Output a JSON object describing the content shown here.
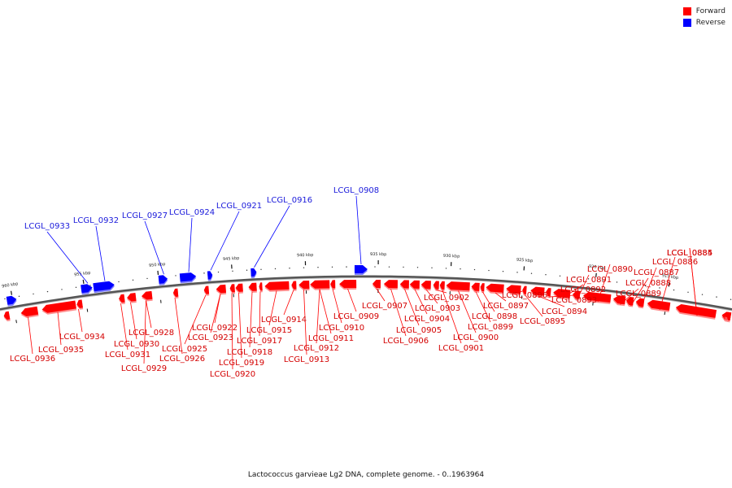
{
  "title": "Lactococcus garvieae Lg2 DNA, complete genome. - 0..1963964",
  "legend": {
    "forward_label": "Forward",
    "reverse_label": "Reverse",
    "forward_color": "#ff0000",
    "reverse_color": "#0000ff"
  },
  "scale_labels": [
    "960 kbp",
    "955 kbp",
    "950 kbp",
    "945 kbp",
    "940 kbp",
    "935 kbp",
    "930 kbp",
    "925 kbp",
    "920 kbp",
    "915 kbp"
  ],
  "genes_reverse": [
    "LCGL_0933",
    "LCGL_0932",
    "LCGL_0927",
    "LCGL_0924",
    "LCGL_0921",
    "LCGL_0916",
    "LCGL_0908"
  ],
  "genes_forward": [
    "LCGL_0936",
    "LCGL_0935",
    "LCGL_0934",
    "LCGL_0931",
    "LCGL_0930",
    "LCGL_0929",
    "LCGL_0928",
    "LCGL_0926",
    "LCGL_0925",
    "LCGL_0923",
    "LCGL_0922",
    "LCGL_0920",
    "LCGL_0919",
    "LCGL_0918",
    "LCGL_0917",
    "LCGL_0915",
    "LCGL_0914",
    "LCGL_0913",
    "LCGL_0912",
    "LCGL_0911",
    "LCGL_0910",
    "LCGL_0909",
    "LCGL_0907",
    "LCGL_0906",
    "LCGL_0905",
    "LCGL_0904",
    "LCGL_0903",
    "LCGL_0902",
    "LCGL_0901",
    "LCGL_0900",
    "LCGL_0899",
    "LCGL_0898",
    "LCGL_0897",
    "LCGL_0896",
    "LCGL_0895",
    "LCGL_0894",
    "LCGL_0893",
    "LCGL_0892",
    "LCGL_0891",
    "LCGL_0890",
    "LCGL_0889",
    "LCGL_0888",
    "LCGL_0887",
    "LCGL_0886",
    "LCGL_0885",
    "LCGL_0884"
  ]
}
